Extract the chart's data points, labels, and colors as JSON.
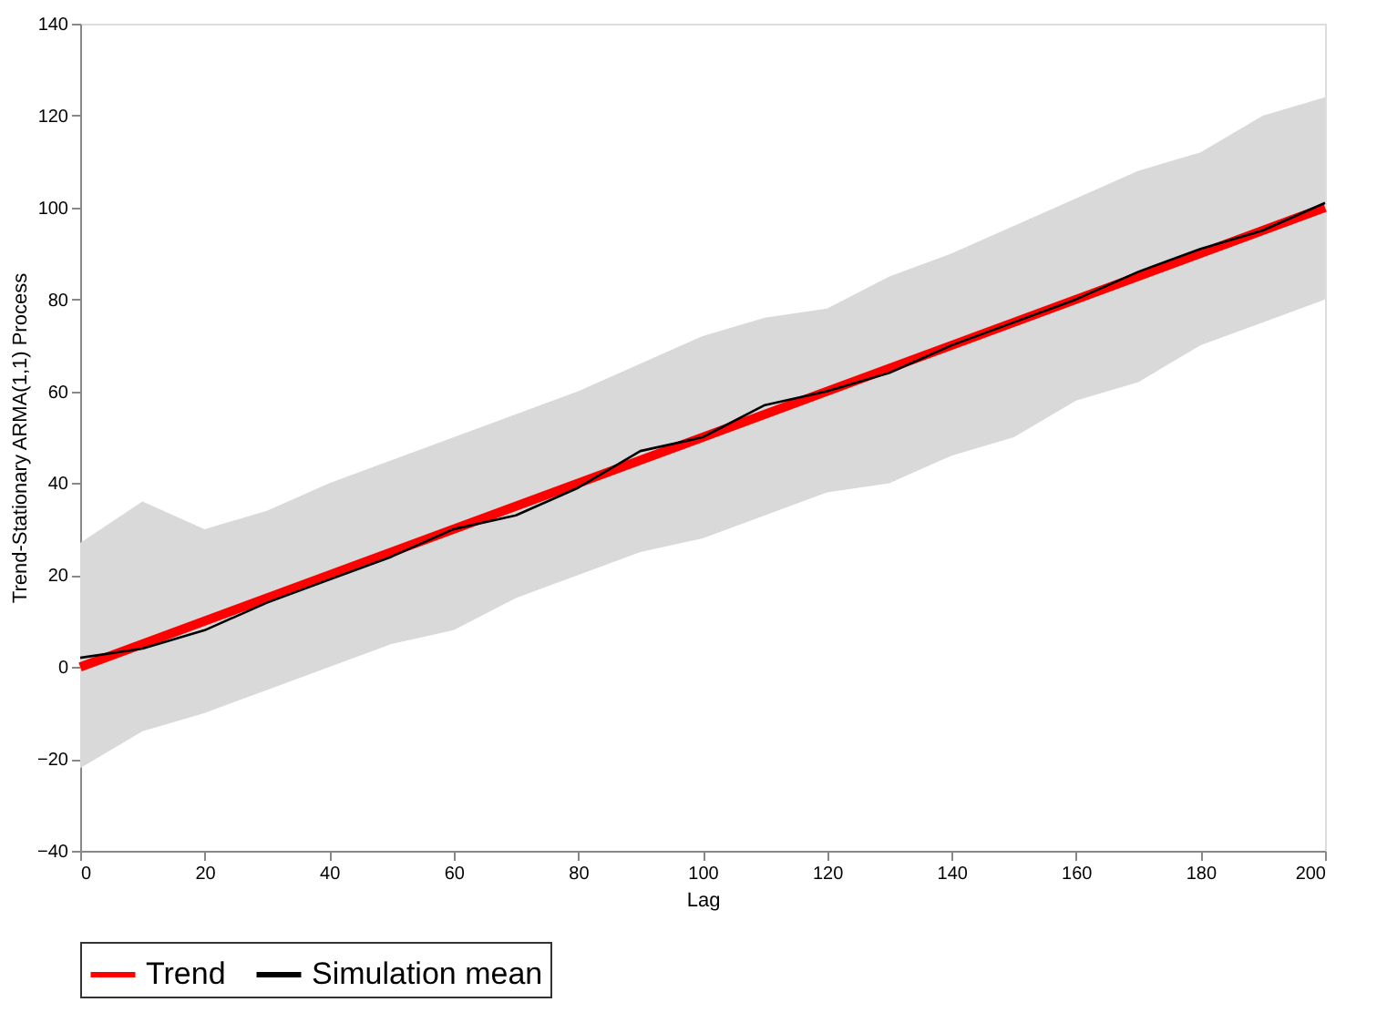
{
  "chart_data": {
    "type": "line",
    "xlabel": "Lag",
    "ylabel": "Trend-Stationary ARMA(1,1) Process",
    "xlim": [
      0,
      200
    ],
    "xticks": [
      0,
      20,
      40,
      60,
      80,
      100,
      120,
      140,
      160,
      180,
      200
    ],
    "ylim": [
      -40,
      140
    ],
    "yticks": [
      -40,
      -20,
      0,
      20,
      40,
      60,
      80,
      100,
      120,
      140
    ],
    "grid": false,
    "legend": "bottom",
    "series": [
      {
        "name": "Trend",
        "color": "#ff0000",
        "x": [
          0,
          200
        ],
        "values": [
          0,
          100
        ]
      },
      {
        "name": "Simulation mean",
        "color": "#000000",
        "x": [
          0,
          10,
          20,
          30,
          40,
          50,
          60,
          70,
          80,
          90,
          100,
          110,
          120,
          130,
          140,
          150,
          160,
          170,
          180,
          190,
          200
        ],
        "values": [
          2,
          4,
          8,
          14,
          19,
          24,
          30,
          33,
          39,
          47,
          50,
          57,
          60,
          64,
          70,
          75,
          80,
          86,
          91,
          95,
          101
        ],
        "lower": [
          -22,
          -14,
          -10,
          -5,
          0,
          5,
          8,
          15,
          20,
          25,
          28,
          33,
          38,
          40,
          46,
          50,
          58,
          62,
          70,
          75,
          80
        ],
        "upper": [
          27,
          36,
          30,
          34,
          40,
          45,
          50,
          55,
          60,
          66,
          72,
          76,
          78,
          85,
          90,
          96,
          102,
          108,
          112,
          120,
          124
        ]
      }
    ]
  }
}
